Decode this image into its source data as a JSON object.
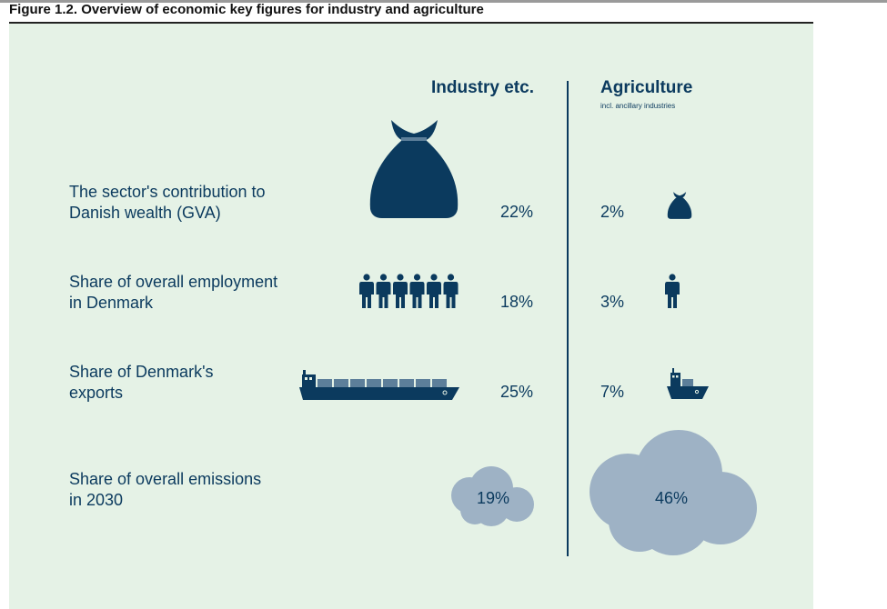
{
  "figure_title": "Figure 1.2. Overview of economic key figures for industry and agriculture",
  "columns": {
    "industry": {
      "label": "Industry etc."
    },
    "agriculture": {
      "label": "Agriculture",
      "sublabel": "incl. ancillary industries"
    }
  },
  "colors": {
    "dark_blue": "#0b3a5e",
    "cloud": "#9eb2c5",
    "panel": "#e5f2e6"
  },
  "chart_data": {
    "type": "table",
    "metrics": [
      {
        "label_lines": [
          "The sector's contribution to",
          "Danish wealth (GVA)"
        ],
        "industry": "22%",
        "agriculture": "2%",
        "icon": "money-bag-icon"
      },
      {
        "label_lines": [
          "Share of overall employment",
          "in Denmark"
        ],
        "industry": "18%",
        "agriculture": "3%",
        "icon": "person-icon"
      },
      {
        "label_lines": [
          "Share of Denmark's",
          "exports"
        ],
        "industry": "25%",
        "agriculture": "7%",
        "icon": "ship-icon"
      },
      {
        "label_lines": [
          "Share of overall emissions",
          "in 2030"
        ],
        "industry": "19%",
        "agriculture": "46%",
        "icon": "cloud-icon"
      }
    ]
  }
}
